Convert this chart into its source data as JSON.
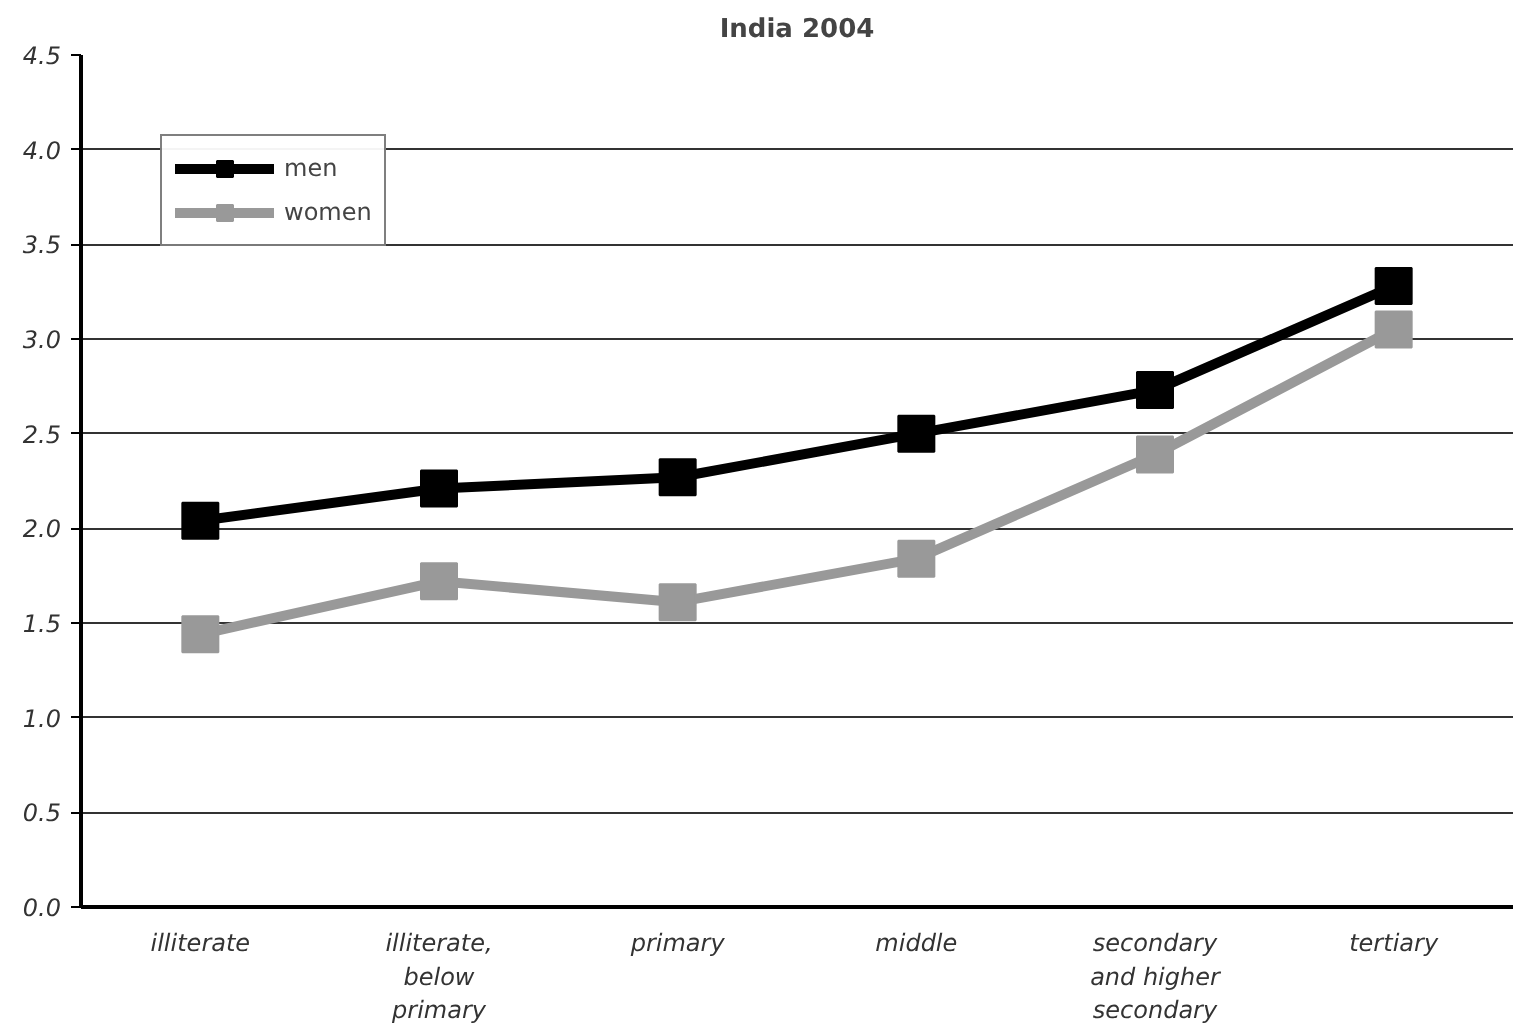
{
  "chart_data": {
    "type": "line",
    "title": "India 2004",
    "categories": [
      "illiterate",
      "illiterate,\nbelow\nprimary",
      "primary",
      "middle",
      "secondary\nand higher\nsecondary",
      "tertiary"
    ],
    "series": [
      {
        "name": "men",
        "color": "#000000",
        "values": [
          2.04,
          2.21,
          2.27,
          2.5,
          2.73,
          3.28
        ]
      },
      {
        "name": "women",
        "color": "#999999",
        "values": [
          1.44,
          1.72,
          1.61,
          1.84,
          2.39,
          3.05
        ]
      }
    ],
    "ylim": [
      0,
      4.5
    ],
    "yticks": [
      {
        "value": 0,
        "label": "0.0"
      },
      {
        "value": 0.5,
        "label": "0.5"
      },
      {
        "value": 1,
        "label": "1.0"
      },
      {
        "value": 1.5,
        "label": "1.5"
      },
      {
        "value": 2,
        "label": "2.0"
      },
      {
        "value": 2.5,
        "label": "2.5"
      },
      {
        "value": 3,
        "label": "3.0"
      },
      {
        "value": 3.5,
        "label": "3.5"
      },
      {
        "value": 4,
        "label": "4.0"
      },
      {
        "value": 4.5,
        "label": "4.5"
      }
    ],
    "grid": "y",
    "legend": "top left",
    "marker": "square",
    "line_style": "solid"
  }
}
